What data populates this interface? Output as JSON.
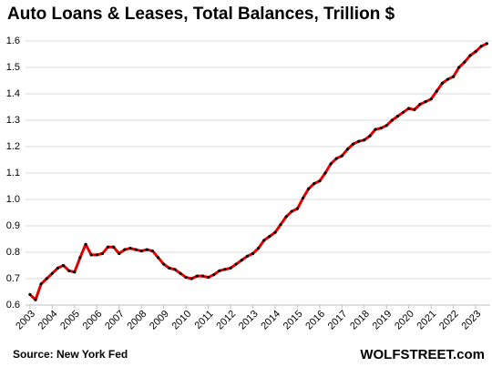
{
  "chart_data": {
    "type": "line",
    "title": "Auto Loans & Leases, Total Balances, Trillion $",
    "source": "Source: New York Fed",
    "brand": "WOLFSTREET.com",
    "grid": true,
    "xlim": [
      2002.8,
      2023.65
    ],
    "xticks": [
      2003,
      2004,
      2005,
      2006,
      2007,
      2008,
      2009,
      2010,
      2011,
      2012,
      2013,
      2014,
      2015,
      2016,
      2017,
      2018,
      2019,
      2020,
      2021,
      2022,
      2023
    ],
    "ylim": [
      0.6,
      1.6
    ],
    "yticks": [
      0.6,
      0.7,
      0.8,
      0.9,
      {
        "value": 1,
        "label": "1.0"
      },
      1.1,
      1.2,
      1.3,
      1.4,
      1.5,
      1.6
    ],
    "x": [
      2003,
      2003.25,
      2003.5,
      2003.75,
      2004,
      2004.25,
      2004.5,
      2004.75,
      2005,
      2005.25,
      2005.5,
      2005.75,
      2006,
      2006.25,
      2006.5,
      2006.75,
      2007,
      2007.25,
      2007.5,
      2007.75,
      2008,
      2008.25,
      2008.5,
      2008.75,
      2009,
      2009.25,
      2009.5,
      2009.75,
      2010,
      2010.25,
      2010.5,
      2010.75,
      2011,
      2011.25,
      2011.5,
      2011.75,
      2012,
      2012.25,
      2012.5,
      2012.75,
      2013,
      2013.25,
      2013.5,
      2013.75,
      2014,
      2014.25,
      2014.5,
      2014.75,
      2015,
      2015.25,
      2015.5,
      2015.75,
      2016,
      2016.25,
      2016.5,
      2016.75,
      2017,
      2017.25,
      2017.5,
      2017.75,
      2018,
      2018.25,
      2018.5,
      2018.75,
      2019,
      2019.25,
      2019.5,
      2019.75,
      2020,
      2020.25,
      2020.5,
      2020.75,
      2021,
      2021.25,
      2021.5,
      2021.75,
      2022,
      2022.25,
      2022.5,
      2022.75,
      2023,
      2023.25,
      2023.5
    ],
    "series": [
      {
        "color": "#e00000",
        "marker_color": "#000000",
        "values": [
          0.64,
          0.62,
          0.68,
          0.7,
          0.72,
          0.74,
          0.75,
          0.73,
          0.725,
          0.78,
          0.83,
          0.79,
          0.79,
          0.795,
          0.82,
          0.82,
          0.795,
          0.81,
          0.815,
          0.81,
          0.805,
          0.81,
          0.805,
          0.78,
          0.755,
          0.74,
          0.735,
          0.72,
          0.705,
          0.7,
          0.71,
          0.71,
          0.705,
          0.715,
          0.73,
          0.735,
          0.74,
          0.755,
          0.77,
          0.785,
          0.795,
          0.815,
          0.845,
          0.86,
          0.875,
          0.905,
          0.935,
          0.955,
          0.965,
          1.005,
          1.04,
          1.06,
          1.07,
          1.1,
          1.135,
          1.155,
          1.165,
          1.19,
          1.21,
          1.22,
          1.225,
          1.24,
          1.265,
          1.27,
          1.28,
          1.3,
          1.315,
          1.33,
          1.345,
          1.34,
          1.36,
          1.37,
          1.38,
          1.41,
          1.44,
          1.455,
          1.465,
          1.5,
          1.52,
          1.545,
          1.56,
          1.58,
          1.59
        ]
      }
    ]
  }
}
